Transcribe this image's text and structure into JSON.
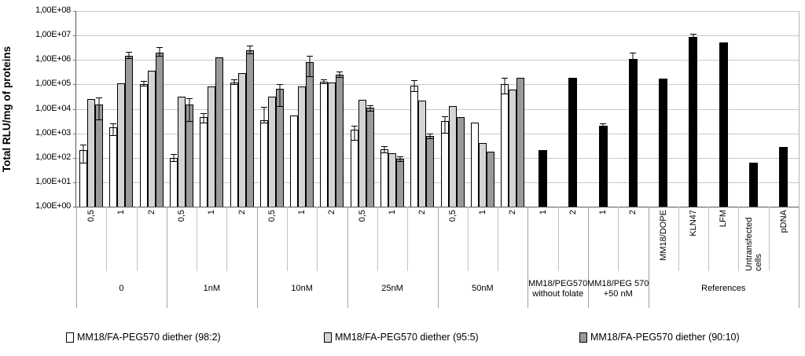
{
  "y_axis": {
    "title": "Total RLU/mg of proteins",
    "tick_labels": [
      "1,00E+08",
      "1,00E+07",
      "1,00E+06",
      "1,00E+05",
      "1,00E+04",
      "1,00E+03",
      "1,00E+02",
      "1,00E+01",
      "1,00E+00"
    ]
  },
  "legend": {
    "items": [
      {
        "label": "MM18/FA-PEG570 diether (98:2)",
        "color": "#ffffff"
      },
      {
        "label": "MM18/FA-PEG570 diether (95:5)",
        "color": "#d4d4d4"
      },
      {
        "label": "MM18/FA-PEG570 diether (90:10)",
        "color": "#9a9a9a"
      }
    ]
  },
  "chart_data": {
    "type": "bar",
    "y_scale": "log10",
    "ylim": [
      1,
      100000000
    ],
    "ylabel": "Total RLU/mg of proteins",
    "grid": true,
    "series": [
      "MM18/FA-PEG570 diether (98:2)",
      "MM18/FA-PEG570 diether (95:5)",
      "MM18/FA-PEG570 diether (90:10)",
      "reference-black"
    ],
    "colors": [
      "#ffffff",
      "#d4d4d4",
      "#9a9a9a",
      "#000000"
    ],
    "groups": [
      {
        "label": "0",
        "cols": [
          {
            "tick": "0,5",
            "bars": [
              {
                "s": 0,
                "v": 200,
                "e": [
                  60,
                  350
                ]
              },
              {
                "s": 1,
                "v": 26000
              },
              {
                "s": 2,
                "v": 15000,
                "e": [
                  3500,
                  30000
                ]
              }
            ]
          },
          {
            "tick": "1",
            "bars": [
              {
                "s": 0,
                "v": 1700,
                "e": [
                  800,
                  2600
                ]
              },
              {
                "s": 1,
                "v": 110000
              },
              {
                "s": 2,
                "v": 1500000,
                "e": [
                  1100000,
                  2100000
                ]
              }
            ]
          },
          {
            "tick": "2",
            "bars": [
              {
                "s": 0,
                "v": 100000,
                "e": [
                  80000,
                  135000
                ]
              },
              {
                "s": 1,
                "v": 360000
              },
              {
                "s": 2,
                "v": 2000000,
                "e": [
                  1400000,
                  3300000
                ]
              }
            ]
          }
        ]
      },
      {
        "label": "1nM",
        "cols": [
          {
            "tick": "0,5",
            "bars": [
              {
                "s": 0,
                "v": 100,
                "e": [
                  70,
                  140
                ]
              },
              {
                "s": 1,
                "v": 32000
              },
              {
                "s": 2,
                "v": 15000,
                "e": [
                  3000,
                  27000
                ]
              }
            ]
          },
          {
            "tick": "1",
            "bars": [
              {
                "s": 0,
                "v": 4500,
                "e": [
                  2500,
                  6500
                ]
              },
              {
                "s": 1,
                "v": 80000
              },
              {
                "s": 2,
                "v": 1300000
              }
            ]
          },
          {
            "tick": "2",
            "bars": [
              {
                "s": 0,
                "v": 120000,
                "e": [
                  95000,
                  155000
                ]
              },
              {
                "s": 1,
                "v": 280000
              },
              {
                "s": 2,
                "v": 2500000,
                "e": [
                  1700000,
                  3800000
                ]
              }
            ]
          }
        ]
      },
      {
        "label": "10nM",
        "cols": [
          {
            "tick": "0,5",
            "bars": [
              {
                "s": 0,
                "v": 3500,
                "e": [
                  2500,
                  12000
                ]
              },
              {
                "s": 1,
                "v": 32000
              },
              {
                "s": 2,
                "v": 65000,
                "e": [
                  12000,
                  100000
                ]
              }
            ]
          },
          {
            "tick": "1",
            "bars": [
              {
                "s": 0,
                "v": 5500
              },
              {
                "s": 1,
                "v": 80000
              },
              {
                "s": 2,
                "v": 800000,
                "e": [
                  200000,
                  1500000
                ]
              }
            ]
          },
          {
            "tick": "2",
            "bars": [
              {
                "s": 0,
                "v": 125000,
                "e": [
                  100000,
                  160000
                ]
              },
              {
                "s": 1,
                "v": 120000
              },
              {
                "s": 2,
                "v": 250000,
                "e": [
                  190000,
                  330000
                ]
              }
            ]
          }
        ]
      },
      {
        "label": "25nM",
        "cols": [
          {
            "tick": "0,5",
            "bars": [
              {
                "s": 0,
                "v": 1400,
                "e": [
                  500,
                  2000
                ]
              },
              {
                "s": 1,
                "v": 23000
              },
              {
                "s": 2,
                "v": 11000,
                "e": [
                  8000,
                  14000
                ]
              }
            ]
          },
          {
            "tick": "1",
            "bars": [
              {
                "s": 0,
                "v": 220,
                "e": [
                  150,
                  300
                ]
              },
              {
                "s": 1,
                "v": 150
              },
              {
                "s": 2,
                "v": 90,
                "e": [
                  70,
                  115
                ]
              }
            ]
          },
          {
            "tick": "2",
            "bars": [
              {
                "s": 0,
                "v": 90000,
                "e": [
                  50000,
                  150000
                ]
              },
              {
                "s": 1,
                "v": 22000
              },
              {
                "s": 2,
                "v": 800,
                "e": [
                  600,
                  1000
                ]
              }
            ]
          }
        ]
      },
      {
        "label": "50nM",
        "cols": [
          {
            "tick": "0,5",
            "bars": [
              {
                "s": 0,
                "v": 3200,
                "e": [
                  1000,
                  5000
                ]
              },
              {
                "s": 1,
                "v": 12500
              },
              {
                "s": 2,
                "v": 4500
              }
            ]
          },
          {
            "tick": "1",
            "bars": [
              {
                "s": 0,
                "v": 2800
              },
              {
                "s": 1,
                "v": 400
              },
              {
                "s": 2,
                "v": 180
              }
            ]
          },
          {
            "tick": "2",
            "bars": [
              {
                "s": 0,
                "v": 100000,
                "e": [
                  40000,
                  180000
                ]
              },
              {
                "s": 1,
                "v": 60000
              },
              {
                "s": 2,
                "v": 190000
              }
            ]
          }
        ]
      },
      {
        "label": "MM18/PEG570 without folate",
        "cols": [
          {
            "tick": "1",
            "bars": [
              {
                "s": 3,
                "v": 200
              }
            ]
          },
          {
            "tick": "2",
            "bars": [
              {
                "s": 3,
                "v": 180000
              }
            ]
          }
        ]
      },
      {
        "label": "MM18/PEG 570 +50 nM",
        "cols": [
          {
            "tick": "1",
            "bars": [
              {
                "s": 3,
                "v": 2000,
                "e": [
                  1700,
                  2600
                ]
              }
            ]
          },
          {
            "tick": "2",
            "bars": [
              {
                "s": 3,
                "v": 1100000,
                "e": [
                  800000,
                  2000000
                ]
              }
            ]
          }
        ]
      },
      {
        "label": "References",
        "cols": [
          {
            "tick": "MM18/DOPE",
            "bars": [
              {
                "s": 3,
                "v": 170000
              }
            ]
          },
          {
            "tick": "KLN47",
            "bars": [
              {
                "s": 3,
                "v": 8500000,
                "e": [
                  7000000,
                  12000000
                ]
              }
            ]
          },
          {
            "tick": "LFM",
            "bars": [
              {
                "s": 3,
                "v": 5000000
              }
            ]
          },
          {
            "tick": "Untransfected cells",
            "bars": [
              {
                "s": 3,
                "v": 65
              }
            ]
          },
          {
            "tick": "pDNA",
            "bars": [
              {
                "s": 3,
                "v": 270
              }
            ]
          }
        ]
      }
    ]
  }
}
